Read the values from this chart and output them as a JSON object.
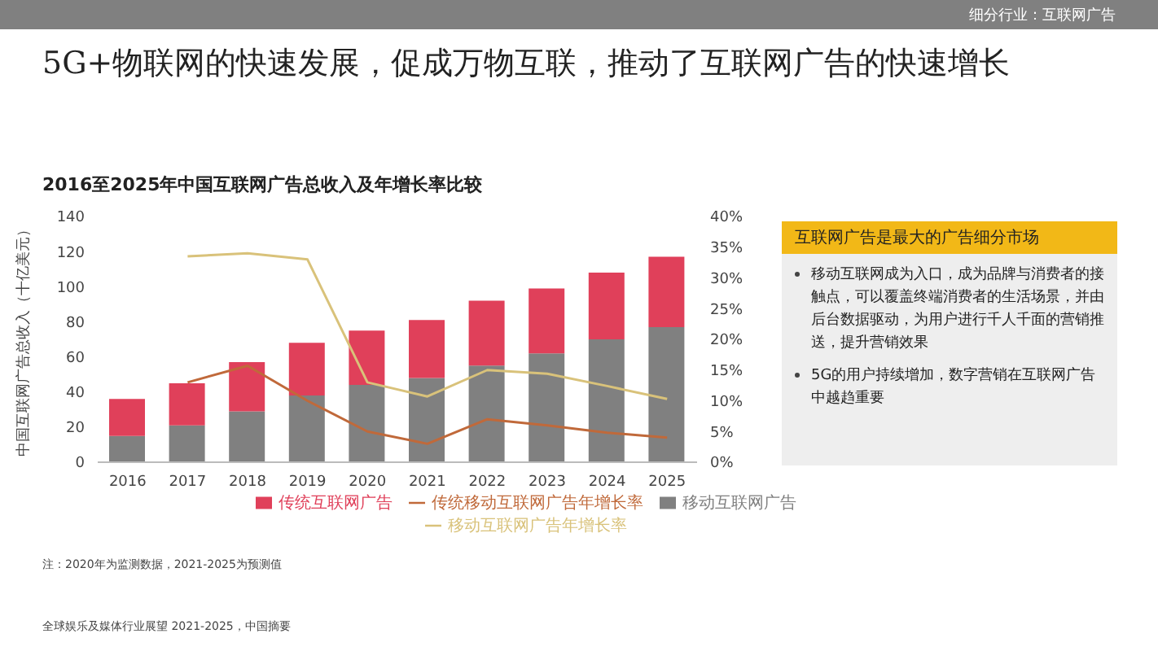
{
  "chart_data": {
    "type": "bar",
    "stacked": true,
    "title": "5G+物联网的快速发展，促成万物互联，推动了互联网广告的快速增长",
    "subtitle": "2016至2025年中国互联网广告总收入及年增长率比较",
    "ylabel": "中国互联网广告总收入（十亿美元）",
    "categories": [
      "2016",
      "2017",
      "2018",
      "2019",
      "2020",
      "2021",
      "2022",
      "2023",
      "2024",
      "2025"
    ],
    "series": [
      {
        "name": "移动互联网广告",
        "color": "#808080",
        "values": [
          15,
          21,
          29,
          38,
          44,
          48,
          55,
          62,
          70,
          77
        ]
      },
      {
        "name": "传统互联网广告",
        "color": "#e0405a",
        "values": [
          21,
          24,
          28,
          30,
          31,
          33,
          37,
          37,
          38,
          40
        ]
      },
      {
        "name": "移动互联网广告年增长率",
        "type": "line",
        "axis": "y2",
        "color": "#d9c27a",
        "values": [
          null,
          33.5,
          34,
          33,
          13,
          10.7,
          15,
          14.4,
          12.4,
          10.3
        ]
      },
      {
        "name": "传统移动互联网广告年增长率",
        "type": "line",
        "axis": "y2",
        "color": "#c0693a",
        "values": [
          null,
          13,
          15.7,
          10,
          5,
          3,
          7,
          6,
          4.8,
          4
        ]
      }
    ],
    "ylim": [
      0,
      140
    ],
    "yticks": [
      0,
      20,
      40,
      60,
      80,
      100,
      120,
      140
    ],
    "y2lim": [
      0,
      40
    ],
    "y2ticks": [
      {
        "value": 0,
        "label": "0%"
      },
      {
        "value": 5,
        "label": "5%"
      },
      {
        "value": 10,
        "label": "10%"
      },
      {
        "value": 15,
        "label": "15%"
      },
      {
        "value": 20,
        "label": "20%"
      },
      {
        "value": 25,
        "label": "25%"
      },
      {
        "value": 30,
        "label": "30%"
      },
      {
        "value": 35,
        "label": "35%"
      },
      {
        "value": 40,
        "label": "40%"
      }
    ],
    "grid": false,
    "legend": "bottom",
    "marker": "none",
    "line_style": "solid",
    "annotations": [
      "细分行业：互联网广告",
      "互联网广告是最大的广告细分市场",
      "移动互联网成为入口，成为品牌与消费者的接触点，可以覆盖终端消费者的生活场景，并由后台数据驱动，为用户进行千人千面的营销推送，提升营销效果",
      "5G的用户持续增加，数字营销在互联网广告中越趋重要",
      "注：2020年为监测数据，2021-2025为预测值",
      "全球娱乐及媒体行业展望 2021-2025，中国摘要"
    ]
  }
}
